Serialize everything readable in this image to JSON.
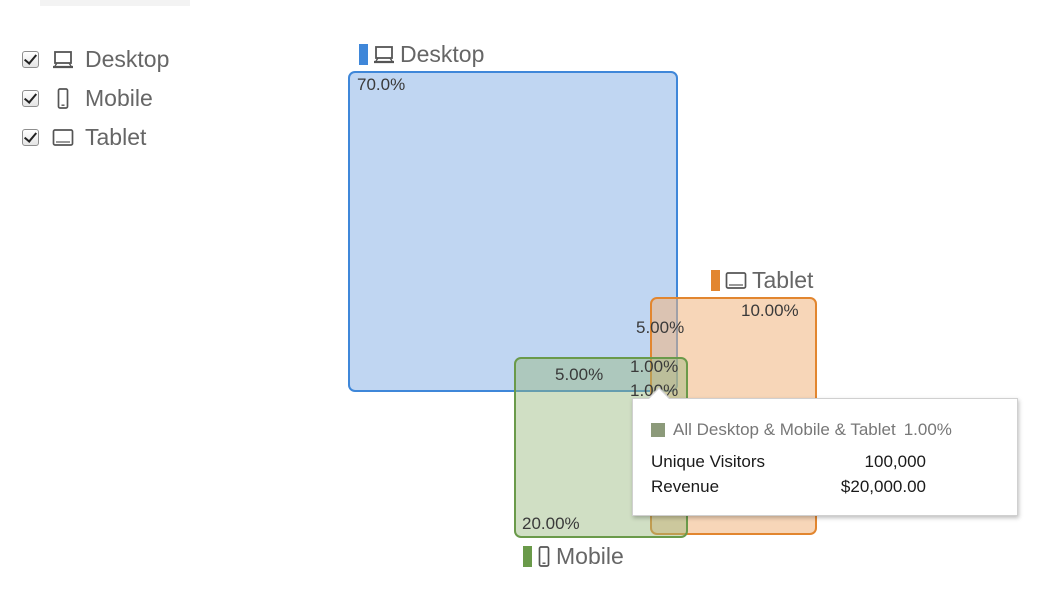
{
  "filters": [
    {
      "label": "Desktop",
      "checked": true,
      "icon": "desktop-icon"
    },
    {
      "label": "Mobile",
      "checked": true,
      "icon": "mobile-icon"
    },
    {
      "label": "Tablet",
      "checked": true,
      "icon": "tablet-icon"
    }
  ],
  "sets": {
    "desktop": {
      "label": "Desktop",
      "color": "#3f87d9",
      "icon": "desktop-icon"
    },
    "tablet": {
      "label": "Tablet",
      "color": "#e2862f",
      "icon": "tablet-icon"
    },
    "mobile": {
      "label": "Mobile",
      "color": "#6a9a4a",
      "icon": "mobile-icon"
    }
  },
  "percentages": {
    "desktop_only": "70.0%",
    "tablet_only": "10.00%",
    "mobile_only": "20.00%",
    "desktop_tablet": "5.00%",
    "desktop_mobile": "5.00%",
    "mobile_tablet": "1.00%",
    "all_three": "1.00%"
  },
  "tooltip": {
    "title": "All Desktop & Mobile & Tablet",
    "percent": "1.00%",
    "swatch_color": "#8c9a7a",
    "metrics": [
      {
        "label": "Unique Visitors",
        "value": "100,000"
      },
      {
        "label": "Revenue",
        "value": "$20,000.00"
      }
    ]
  }
}
